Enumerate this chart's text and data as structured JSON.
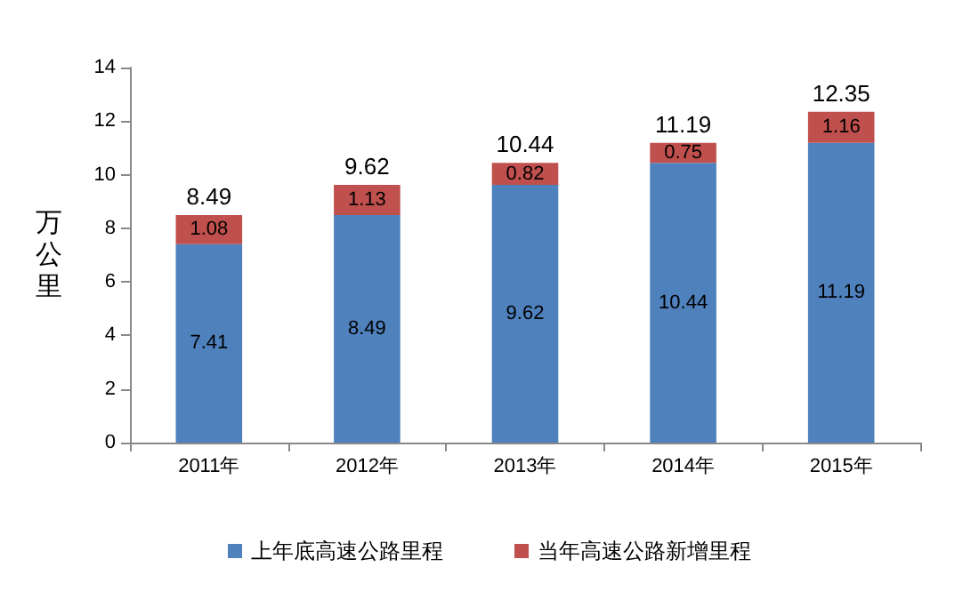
{
  "chart_data": {
    "type": "bar",
    "stacked": true,
    "ylabel": "万公里",
    "categories": [
      "2011年",
      "2012年",
      "2013年",
      "2014年",
      "2015年"
    ],
    "series": [
      {
        "name": "上年底高速公路里程",
        "color": "#4f81bd",
        "values": [
          7.41,
          8.49,
          9.62,
          10.44,
          11.19
        ]
      },
      {
        "name": "当年高速公路新增里程",
        "color": "#c0504d",
        "values": [
          1.08,
          1.13,
          0.82,
          0.75,
          1.16
        ]
      }
    ],
    "totals": [
      "8.49",
      "9.62",
      "10.44",
      "11.19",
      "12.35"
    ],
    "data_labels": true,
    "ylim": [
      0,
      14
    ],
    "yticks": [
      0,
      2,
      4,
      6,
      8,
      10,
      12,
      14
    ],
    "grid": false,
    "legend": "bottom"
  }
}
